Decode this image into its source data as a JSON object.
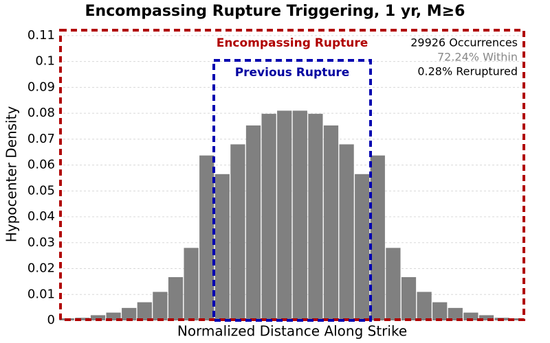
{
  "chart_data": {
    "type": "bar",
    "title": "Encompassing Rupture Triggering, 1 yr, M≥6",
    "x_label": "Normalized Distance Along Strike",
    "y_label": "Hypocenter Density",
    "categories": [
      null,
      null,
      null,
      null,
      null,
      null,
      null,
      null,
      null,
      null,
      null,
      null,
      null,
      null,
      null,
      null,
      null,
      null,
      null,
      null,
      null,
      null,
      null,
      null,
      null,
      null,
      null,
      null,
      null,
      null
    ],
    "values": [
      0.0008,
      0.001,
      0.002,
      0.003,
      0.0048,
      0.007,
      0.011,
      0.0167,
      0.028,
      0.0637,
      0.0565,
      0.068,
      0.0753,
      0.0798,
      0.081,
      0.081,
      0.0798,
      0.0753,
      0.068,
      0.0565,
      0.0637,
      0.028,
      0.0167,
      0.011,
      0.007,
      0.0048,
      0.003,
      0.002,
      0.001,
      0.0008
    ],
    "color": "#808080",
    "ylim": [
      0,
      0.113
    ],
    "yticks": [
      0,
      0.01,
      0.02,
      0.03,
      0.04,
      0.05,
      0.06,
      0.07,
      0.08,
      0.09,
      0.1,
      0.11
    ],
    "grid": true,
    "annotations": {
      "encompassing": "Encompassing Rupture",
      "previous": "Previous Rupture",
      "occurrences": "29926 Occurrences",
      "within": "72.24% Within",
      "reruptured": "0.28% Reruptured"
    }
  }
}
